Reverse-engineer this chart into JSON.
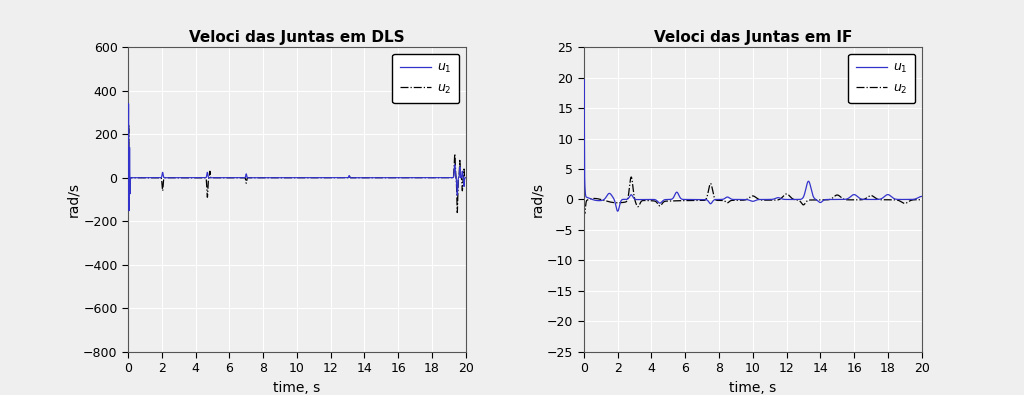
{
  "title_left": "Veloci das Juntas em DLS",
  "title_right": "Veloci das Juntas em IF",
  "xlabel": "time, s",
  "ylabel": "rad/s",
  "color_u1": "#3333CC",
  "color_u2": "#000000",
  "xlim": [
    0,
    20
  ],
  "ylim_left": [
    -800,
    600
  ],
  "ylim_right": [
    -25,
    25
  ],
  "yticks_left": [
    -800,
    -600,
    -400,
    -200,
    0,
    200,
    400,
    600
  ],
  "yticks_right": [
    -25,
    -20,
    -15,
    -10,
    -5,
    0,
    5,
    10,
    15,
    20,
    25
  ],
  "xticks": [
    0,
    2,
    4,
    6,
    8,
    10,
    12,
    14,
    16,
    18,
    20
  ],
  "fig_bg": "#EFEFEF",
  "plot_bg": "#EFEFEF",
  "grid_color": "#FFFFFF",
  "grid_lw": 0.8
}
